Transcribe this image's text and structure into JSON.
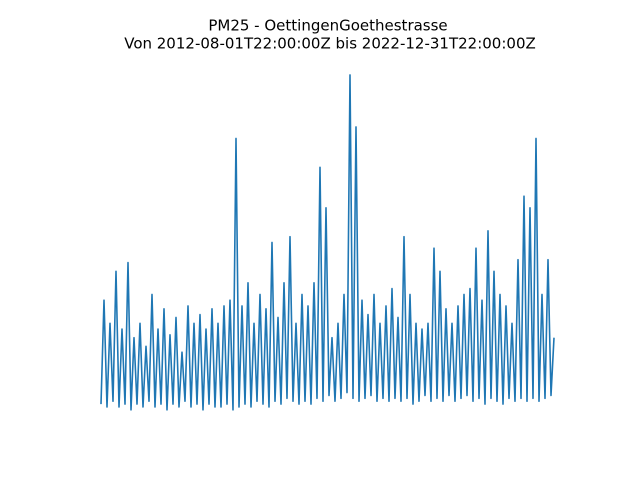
{
  "chart_data": {
    "type": "line",
    "title": "PM25 - OettingenGoethestrasse",
    "subtitle": "Von 2012-08-01T22:00:00Z bis 2022-12-31T22:00:00Z",
    "color": "#1f77b4",
    "ylim": [
      -6,
      122
    ],
    "values": [
      2,
      38,
      1,
      30,
      3,
      48,
      1,
      28,
      2,
      51,
      0,
      25,
      2,
      30,
      1,
      22,
      3,
      40,
      1,
      28,
      2,
      35,
      0,
      26,
      2,
      32,
      1,
      20,
      3,
      36,
      1,
      30,
      2,
      33,
      0,
      28,
      2,
      35,
      1,
      30,
      1,
      36,
      2,
      38,
      0,
      94,
      1,
      36,
      2,
      44,
      1,
      30,
      3,
      40,
      2,
      35,
      1,
      58,
      3,
      32,
      2,
      44,
      4,
      60,
      3,
      30,
      2,
      40,
      3,
      36,
      2,
      44,
      4,
      84,
      3,
      70,
      5,
      25,
      3,
      30,
      4,
      40,
      6,
      116,
      4,
      98,
      3,
      38,
      4,
      33,
      5,
      40,
      3,
      30,
      4,
      36,
      3,
      42,
      4,
      32,
      3,
      60,
      4,
      40,
      2,
      30,
      3,
      28,
      5,
      30,
      3,
      56,
      4,
      48,
      3,
      35,
      5,
      30,
      3,
      36,
      4,
      40,
      5,
      42,
      3,
      56,
      4,
      38,
      2,
      62,
      4,
      48,
      3,
      40,
      2,
      36,
      4,
      30,
      3,
      52,
      4,
      74,
      3,
      70,
      4,
      94,
      3,
      40,
      4,
      52,
      5,
      25
    ]
  }
}
